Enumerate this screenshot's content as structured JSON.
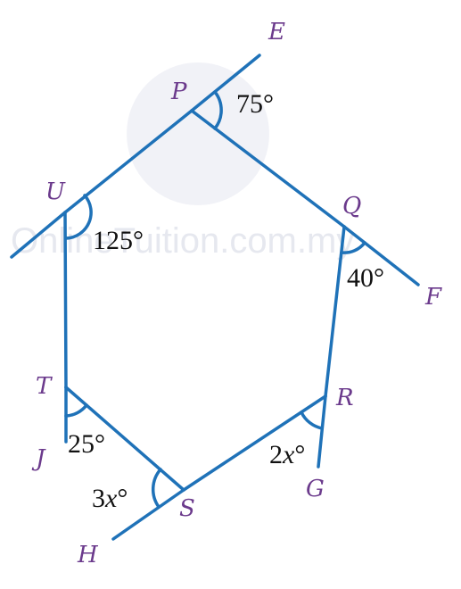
{
  "colors": {
    "line": "#1f72b8",
    "vertex_label": "#6b3a8c",
    "angle_label": "#111111",
    "watermark": "#e3e6ee"
  },
  "vertices": {
    "P": "P",
    "Q": "Q",
    "R": "R",
    "S": "S",
    "T": "T",
    "U": "U"
  },
  "external_points": {
    "E": "E",
    "F": "F",
    "G": "G",
    "H": "H",
    "J": "J"
  },
  "angles": {
    "at_P": "75°",
    "at_U": "125°",
    "at_Q": "40°",
    "at_T": "25°",
    "at_R_coef": "2",
    "at_R_var": "x",
    "at_R_deg": "°",
    "at_S_coef": "3",
    "at_S_var": "x",
    "at_S_deg": "°"
  },
  "watermark": {
    "text": "OnlineTuition.com.my",
    "logo": "globe-logo"
  }
}
